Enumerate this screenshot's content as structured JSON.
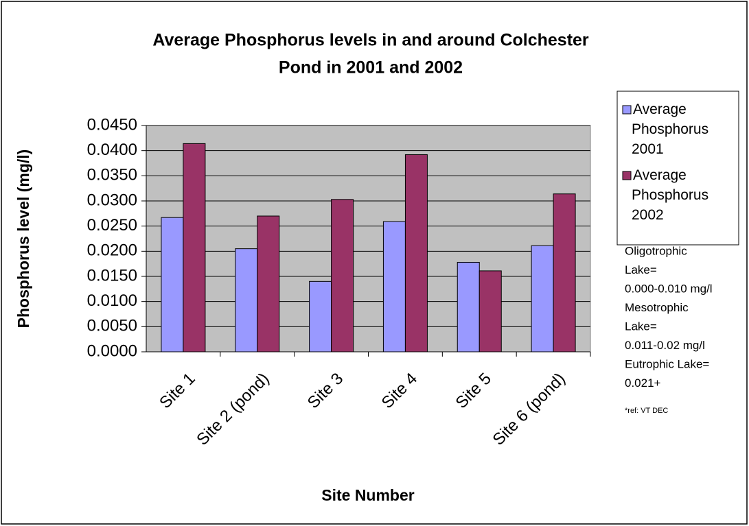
{
  "chart_data": {
    "type": "bar",
    "title": [
      "Average Phosphorus levels in and around Colchester",
      "Pond in 2001 and 2002"
    ],
    "x_label": "Site Number",
    "y_label": "Phosphorus level (mg/l)",
    "categories": [
      "Site 1",
      "Site 2 (pond)",
      "Site 3",
      "Site 4",
      "Site 5",
      "Site 6 (pond)"
    ],
    "series": [
      {
        "name": "Average Phosphorus 2001",
        "color": "#9999ff",
        "values": [
          0.0267,
          0.0205,
          0.014,
          0.0259,
          0.0178,
          0.0211
        ]
      },
      {
        "name": "Average Phosphorus 2002",
        "color": "#993366",
        "values": [
          0.0414,
          0.027,
          0.0303,
          0.0392,
          0.0161,
          0.0314
        ]
      }
    ],
    "ylim": [
      0,
      0.045
    ],
    "yticks": [
      {
        "value": 0,
        "label": "0.0000"
      },
      {
        "value": 0.005,
        "label": "0.0050"
      },
      {
        "value": 0.01,
        "label": "0.0100"
      },
      {
        "value": 0.015,
        "label": "0.0150"
      },
      {
        "value": 0.02,
        "label": "0.0200"
      },
      {
        "value": 0.025,
        "label": "0.0250"
      },
      {
        "value": 0.03,
        "label": "0.0300"
      },
      {
        "value": 0.035,
        "label": "0.0350"
      },
      {
        "value": 0.04,
        "label": "0.0400"
      },
      {
        "value": 0.045,
        "label": "0.0450"
      }
    ],
    "grid": true,
    "legend": "right",
    "annotations": [
      "Oligotrophic",
      "Lake=",
      "0.000-0.010 mg/l",
      "Mesotrophic",
      "Lake=",
      "0.011-0.02 mg/l",
      "Eutrophic Lake=",
      "0.021+"
    ],
    "reference": "*ref: VT DEC"
  }
}
